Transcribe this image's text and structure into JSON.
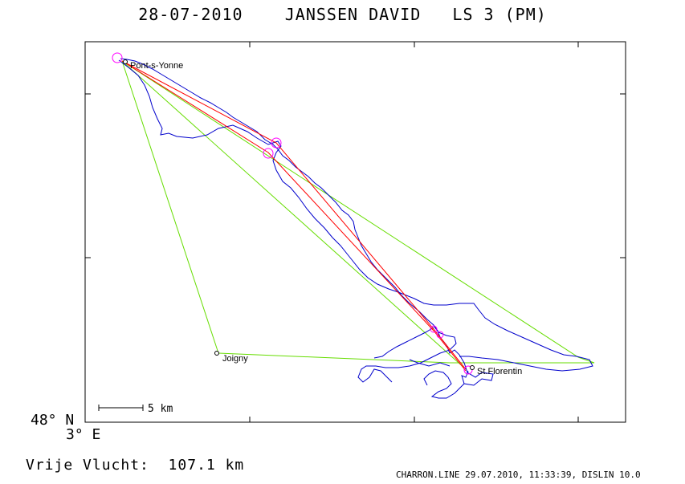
{
  "header": {
    "title": "28-07-2010    JANSSEN DAVID   LS 3 (PM)"
  },
  "axes": {
    "latitude_label": "48° N",
    "longitude_label": "3° E"
  },
  "scale_bar": {
    "label": "5 km"
  },
  "places": [
    {
      "name": "Pont-s-Yonne"
    },
    {
      "name": "Joigny"
    },
    {
      "name": "St.Florentin"
    }
  ],
  "summary": {
    "distance_text": "Vrije Vlucht:  107.1 km"
  },
  "footer": {
    "text": "CHARRON.LINE 29.07.2010, 11:33:39, DISLIN 10.0"
  },
  "colors": {
    "track": "#0000cc",
    "free_flight_line": "#ff0000",
    "triangle_line": "#66dd00",
    "turnpoint_marker": "#ff00ff",
    "frame": "#000000"
  }
}
